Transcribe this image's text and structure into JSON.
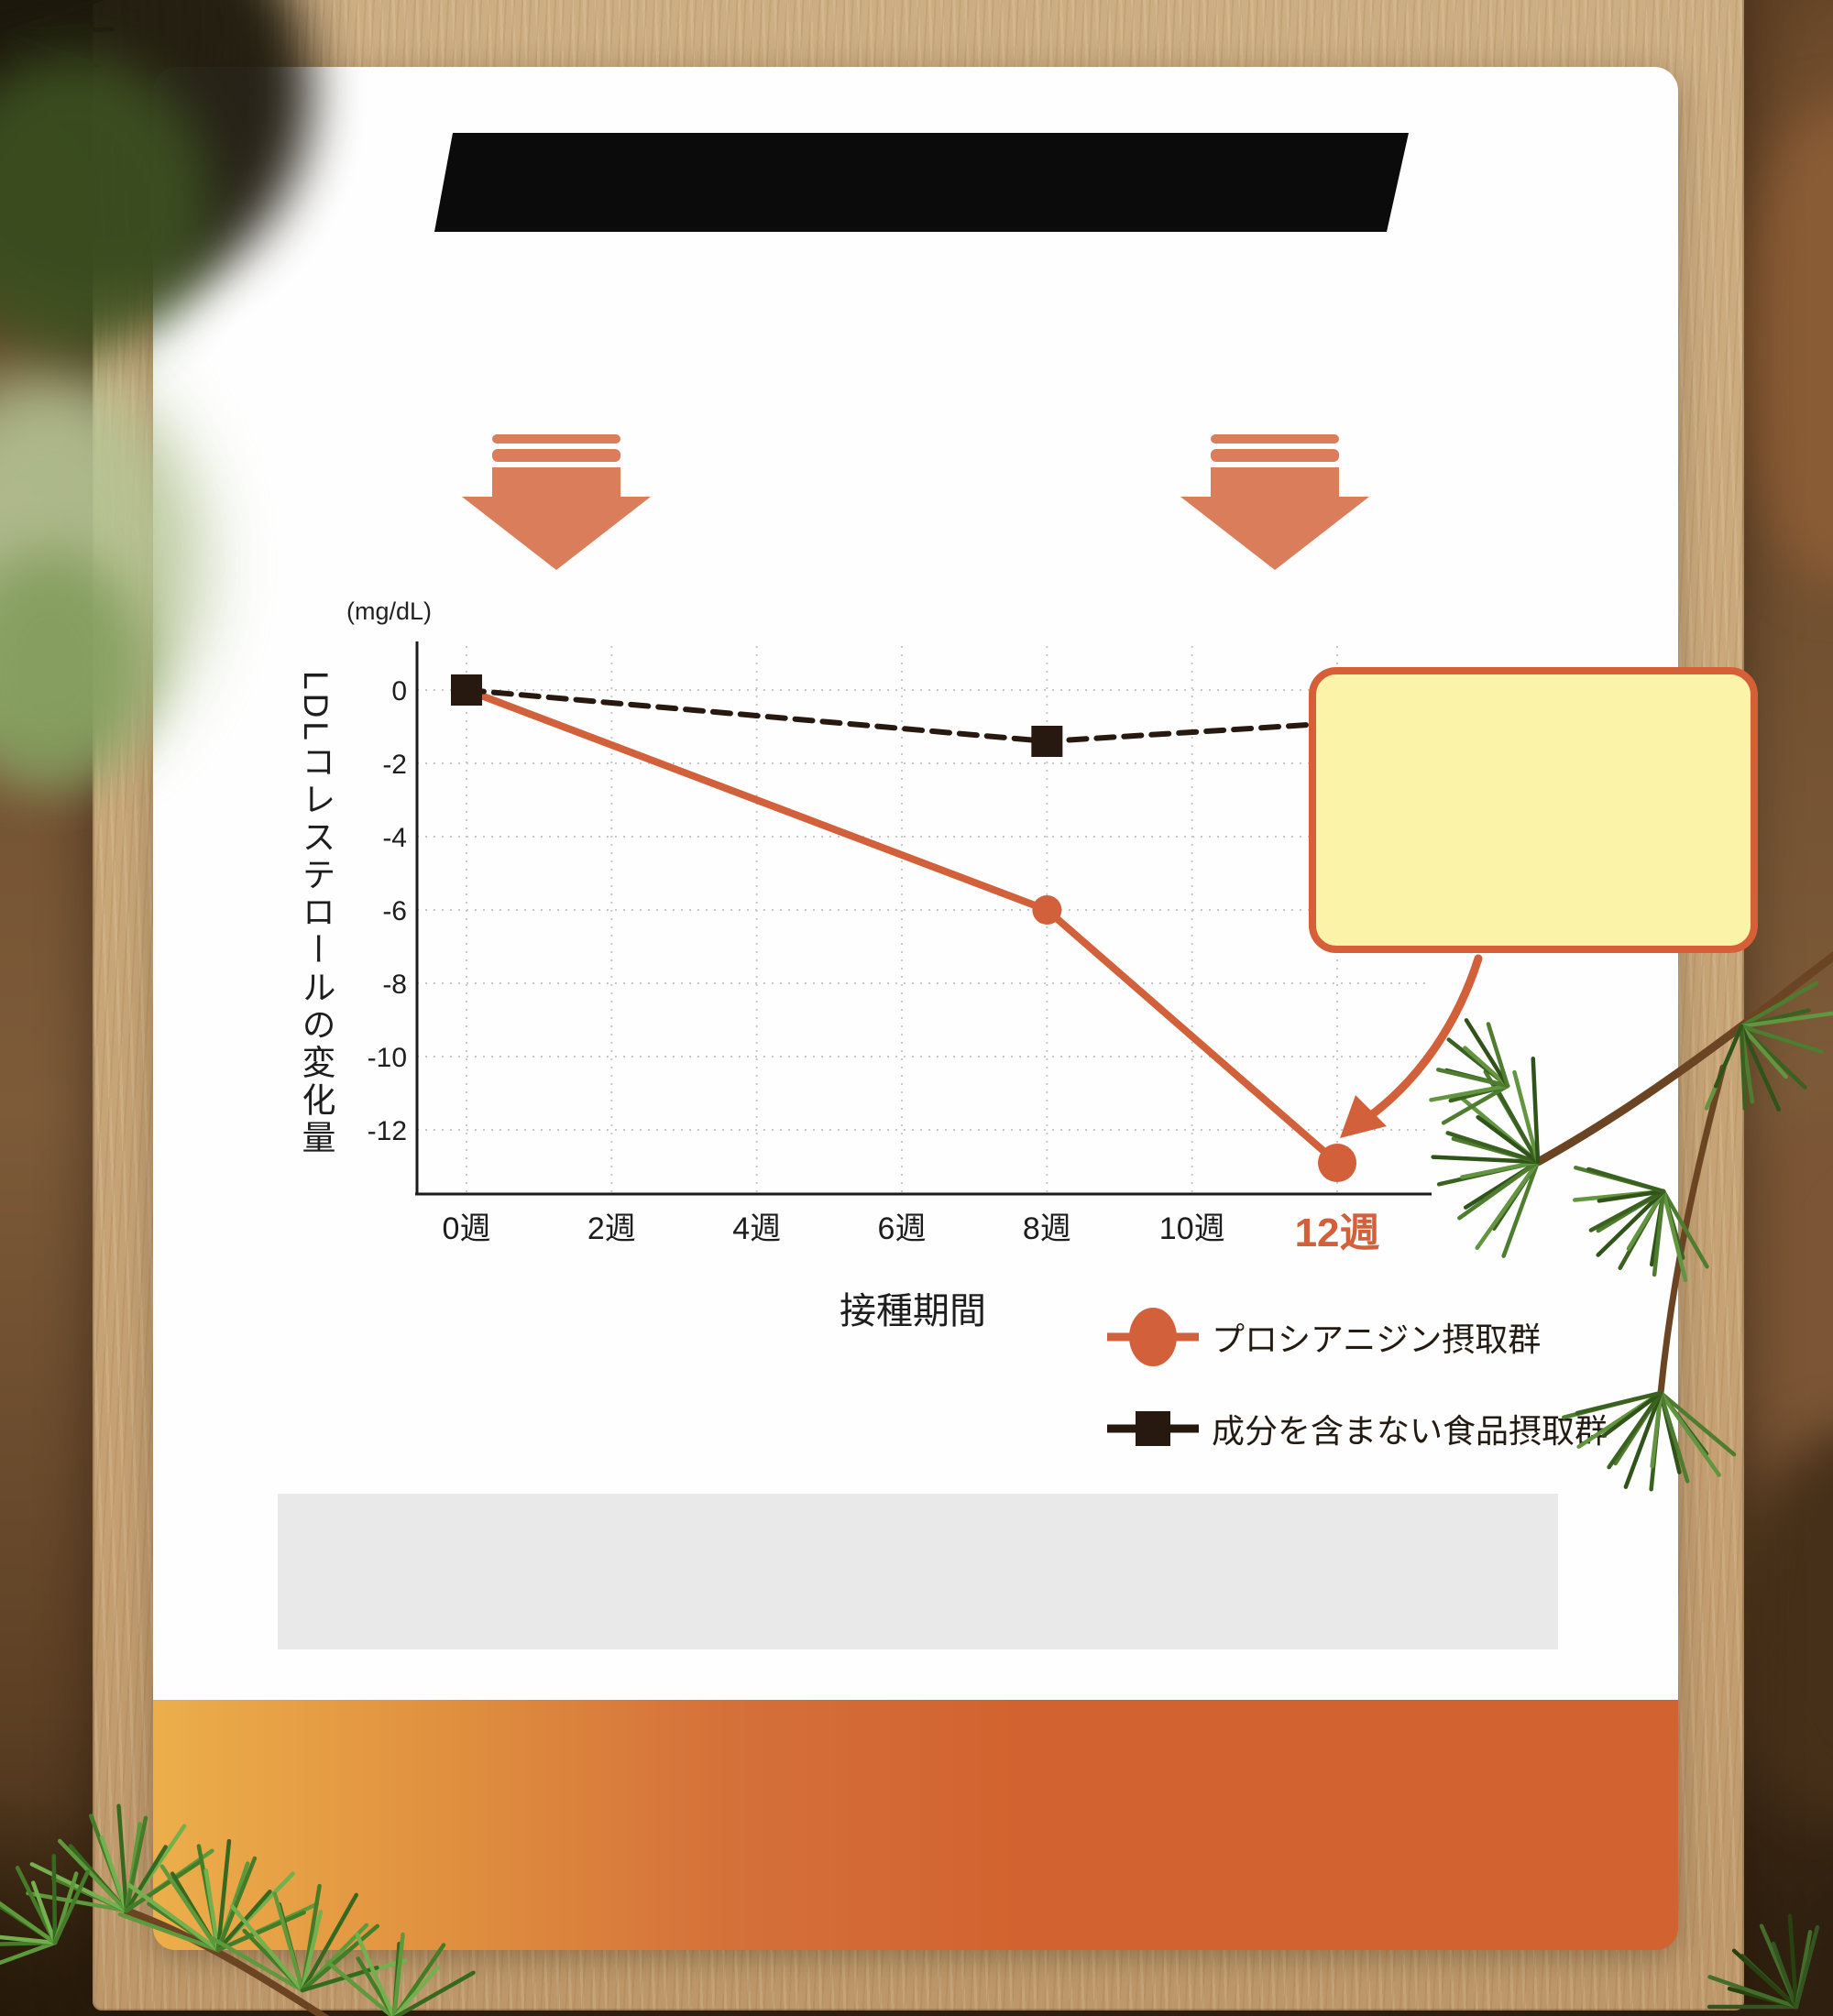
{
  "banner": {
    "note": "solid black bar, no visible text"
  },
  "callout": {
    "text": "",
    "fill": "#fbf3a8",
    "border_color": "#d65f38"
  },
  "icons": {
    "emphasis_arrows": "down-arrow-icon",
    "callout_pointer": "curved-arrow-icon",
    "series1_marker": "circle-marker-icon",
    "series2_marker": "square-marker-icon"
  },
  "colors": {
    "accent_orange": "#d2613b",
    "arrow_salmon": "#da7d5b",
    "dashed_series_black": "#27190f",
    "gridline": "#c9c9c9",
    "banner_black": "#0b0b0b",
    "gray_box": "#e9e9e9",
    "footer_gradient_left": "#ecae4b",
    "footer_gradient_right": "#d2622f",
    "highlight_tick": "#d2613b"
  },
  "chart_data": {
    "type": "line",
    "unit_label": "(mg/dL)",
    "ylabel": "LDLコレステロールの変化量",
    "xlabel": "接種期間",
    "x_tick_labels": [
      "0週",
      "2週",
      "4週",
      "6週",
      "8週",
      "10週",
      "12週"
    ],
    "highlight_x_tick": "12週",
    "y_ticks": [
      0,
      -2,
      -4,
      -6,
      -8,
      -10,
      -12
    ],
    "y_tick_labels": [
      "0",
      "-2",
      "-4",
      "-6",
      "-8",
      "-10",
      "-12"
    ],
    "xlim_weeks": [
      0,
      12
    ],
    "ylim": [
      -13.8,
      1.3
    ],
    "grid": "dotted",
    "legend_position": "bottom-right",
    "series": [
      {
        "name": "プロシアニジン摂取群",
        "color": "#d2613b",
        "style": "solid",
        "marker": "circle",
        "x": [
          0,
          8,
          12
        ],
        "values": [
          0,
          -6,
          -12.9
        ],
        "marker_radii": [
          0,
          16,
          21
        ]
      },
      {
        "name": "成分を含まない食品摂取群",
        "color": "#27190f",
        "style": "dashed",
        "marker": "square",
        "x": [
          0,
          8,
          12
        ],
        "values": [
          0,
          -1.4,
          -0.9
        ],
        "marker_sizes": [
          34,
          34,
          0
        ],
        "last_point_hidden_behind_callout": true
      }
    ]
  }
}
